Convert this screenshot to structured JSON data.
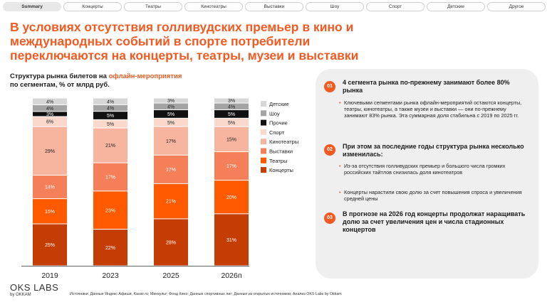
{
  "tabs": [
    "Summary",
    "Концерты",
    "Театры",
    "Кинотеатры",
    "Выставки",
    "Шоу",
    "Спорт",
    "Детские",
    "Другое"
  ],
  "headline": "В условиях отсутствия голливудских премьер в кино и международных событий в спорте потребители переключаются на концерты, театры, музеи и выставки",
  "chart_subtitle": {
    "pre": "Структура рынка билетов на ",
    "highlight": "офлайн-мероприятия",
    "post": "по сегментам, % от млрд руб."
  },
  "chart_data": {
    "type": "bar",
    "stacked": true,
    "title": "Структура рынка билетов на офлайн-мероприятия по сегментам, % от млрд руб.",
    "categories": [
      "2019",
      "2023",
      "2025",
      "2026п"
    ],
    "series": [
      {
        "name": "Концерты",
        "color": "#c43d05",
        "values": [
          25,
          22,
          28,
          31
        ]
      },
      {
        "name": "Театры",
        "color": "#ff5a00",
        "values": [
          15,
          23,
          21,
          20
        ]
      },
      {
        "name": "Выставки",
        "color": "#f47f59",
        "values": [
          14,
          17,
          17,
          17
        ]
      },
      {
        "name": "Кинотеатры",
        "color": "#f7b49f",
        "values": [
          29,
          21,
          17,
          15
        ]
      },
      {
        "name": "Спорт",
        "color": "#fad8cb",
        "values": [
          6,
          5,
          5,
          5
        ]
      },
      {
        "name": "Прочие",
        "color": "#111111",
        "values": [
          3,
          5,
          5,
          5
        ]
      },
      {
        "name": "Шоу",
        "color": "#a4a4a4",
        "values": [
          4,
          4,
          4,
          4
        ]
      },
      {
        "name": "Детские",
        "color": "#d7d7d7",
        "values": [
          4,
          4,
          3,
          3
        ]
      }
    ],
    "legend_order": [
      "Детские",
      "Шоу",
      "Прочие",
      "Спорт",
      "Кинотеатры",
      "Выставки",
      "Театры",
      "Концерты"
    ],
    "value_suffix": "%",
    "legend_position": "right"
  },
  "panel": {
    "points": [
      {
        "num": "01",
        "title": "4 сегмента рынка по-прежнему занимают более 80% рынка",
        "bullets": [
          "Ключевыми сегментами рынка офлайн-мероприятий остаются концерты, театры, кинотеатры, а также музеи и выставки — они по-прежнему занимают 83% рынка. Эта суммарная доля стабильна с 2019 по 2025 гг."
        ]
      },
      {
        "num": "02",
        "title": "При этом за последние годы структура рынка несколько изменилась:",
        "bullets": [
          "Из-за отсутствия голливудских премьер и большого числа громких российских тайтлов снизилась доля кинотеатров",
          "Концерты нарастили свою долю за счет повышения спроса и увеличения средней цены"
        ]
      },
      {
        "num": "03",
        "title": "В прогнозе на 2026 год концерты продолжат наращивать долю за счет увеличения цен и числа стадионных концертов",
        "bullets": []
      }
    ]
  },
  "footer": {
    "logo": "OKS LABS",
    "logo_sub": "by OKKAM",
    "sources": "Источники: Данные Яндекс Афиши, Kassir.ru; Минкульт; Фонд Кино; Данные спортивных лиг; Данные из открытых источников; Анализ OKS Labs by Okkam"
  }
}
